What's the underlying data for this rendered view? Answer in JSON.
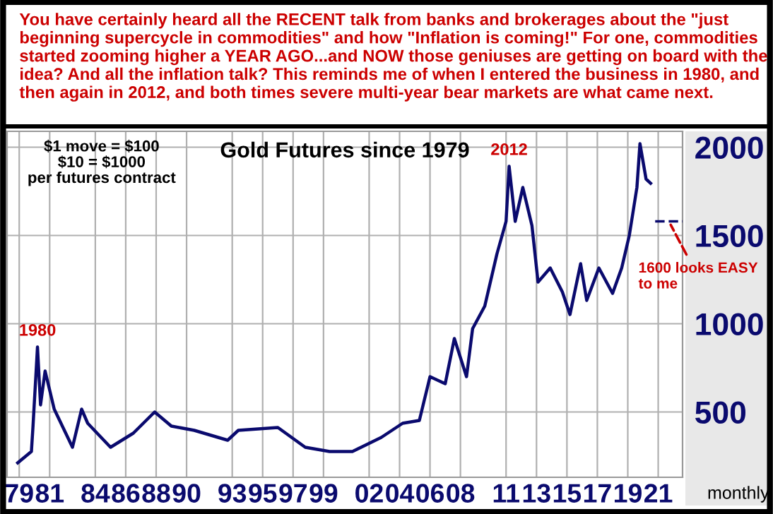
{
  "chart_data": {
    "type": "line",
    "title": "Gold Futures since 1979",
    "subtitle": "You have certainly heard all the RECENT talk from banks and brokerages about the \"just beginning supercycle in commodities\" and how \"Inflation is coming!\" For one, commodities started zooming higher a YEAR AGO...and NOW those geniuses are getting on board with the idea? And all the inflation talk? This reminds me of when I entered the business in 1980, and then again in 2012, and both times severe multi-year bear markets are what came next.",
    "xlabel": "monthly",
    "series": [
      {
        "color": "#0a0a6e",
        "x": [
          1978.9,
          1979.8,
          1979.9,
          1980.2,
          1980.4,
          1980.7,
          1981.3,
          1982.5,
          1983.1,
          1983.5,
          1985.0,
          1986.5,
          1987.9,
          1989.0,
          1990.5,
          1992.7,
          1993.4,
          1996.0,
          1997.8,
          1999.4,
          2000.9,
          2002.8,
          2004.2,
          2005.3,
          2006.0,
          2007.0,
          2007.6,
          2008.4,
          2008.8,
          2009.6,
          2010.4,
          2011.0,
          2011.2,
          2011.6,
          2012.1,
          2012.7,
          2013.1,
          2013.9,
          2014.7,
          2015.2,
          2015.9,
          2016.3,
          2017.1,
          2018.0,
          2018.6,
          2019.1,
          2019.6,
          2019.8,
          2020.2,
          2020.5
        ],
        "values": [
          212,
          276,
          412,
          868,
          540,
          732,
          516,
          300,
          516,
          436,
          300,
          380,
          500,
          420,
          396,
          340,
          396,
          412,
          300,
          276,
          276,
          356,
          436,
          452,
          700,
          660,
          916,
          700,
          972,
          1100,
          1396,
          1580,
          1892,
          1580,
          1772,
          1556,
          1236,
          1316,
          1180,
          1052,
          1340,
          1132,
          1316,
          1172,
          1316,
          1500,
          1772,
          2020,
          1820,
          1796
        ]
      },
      {
        "color": "#0a0a6e",
        "line_style": "dashed",
        "x": [
          2020.8,
          2022.6
        ],
        "values": [
          1580,
          1580
        ]
      }
    ],
    "annotations": [
      {
        "text": "1980",
        "x": 1980.2,
        "y": 868
      },
      {
        "text": "2012",
        "x": 2011.2,
        "y": 1892
      },
      {
        "text": "1600 looks EASY to me",
        "x": 2021.7,
        "y": 1580
      },
      "$1 move = $100\n$10 = $1000\nper futures contract"
    ],
    "xlim": [
      1978.2,
      2022.6
    ],
    "xticks": [
      {
        "value": 1979,
        "label": "79"
      },
      {
        "value": 1981,
        "label": "81"
      },
      {
        "value": 1984,
        "label": "84"
      },
      {
        "value": 1986,
        "label": "86"
      },
      {
        "value": 1988,
        "label": "88"
      },
      {
        "value": 1990,
        "label": "90"
      },
      {
        "value": 1993,
        "label": "93"
      },
      {
        "value": 1995,
        "label": "95"
      },
      {
        "value": 1997,
        "label": "97"
      },
      {
        "value": 1999,
        "label": "99"
      },
      {
        "value": 2002,
        "label": "02"
      },
      {
        "value": 2004,
        "label": "04"
      },
      {
        "value": 2006,
        "label": "06"
      },
      {
        "value": 2008,
        "label": "08"
      },
      {
        "value": 2011,
        "label": "11"
      },
      {
        "value": 2013,
        "label": "13"
      },
      {
        "value": 2015,
        "label": "15"
      },
      {
        "value": 2017,
        "label": "17"
      },
      {
        "value": 2019,
        "label": "19"
      },
      {
        "value": 2021,
        "label": "21"
      }
    ],
    "ylim": [
      130,
      2090
    ],
    "yticks": [
      500,
      1000,
      1500,
      2000
    ],
    "grid": true
  }
}
